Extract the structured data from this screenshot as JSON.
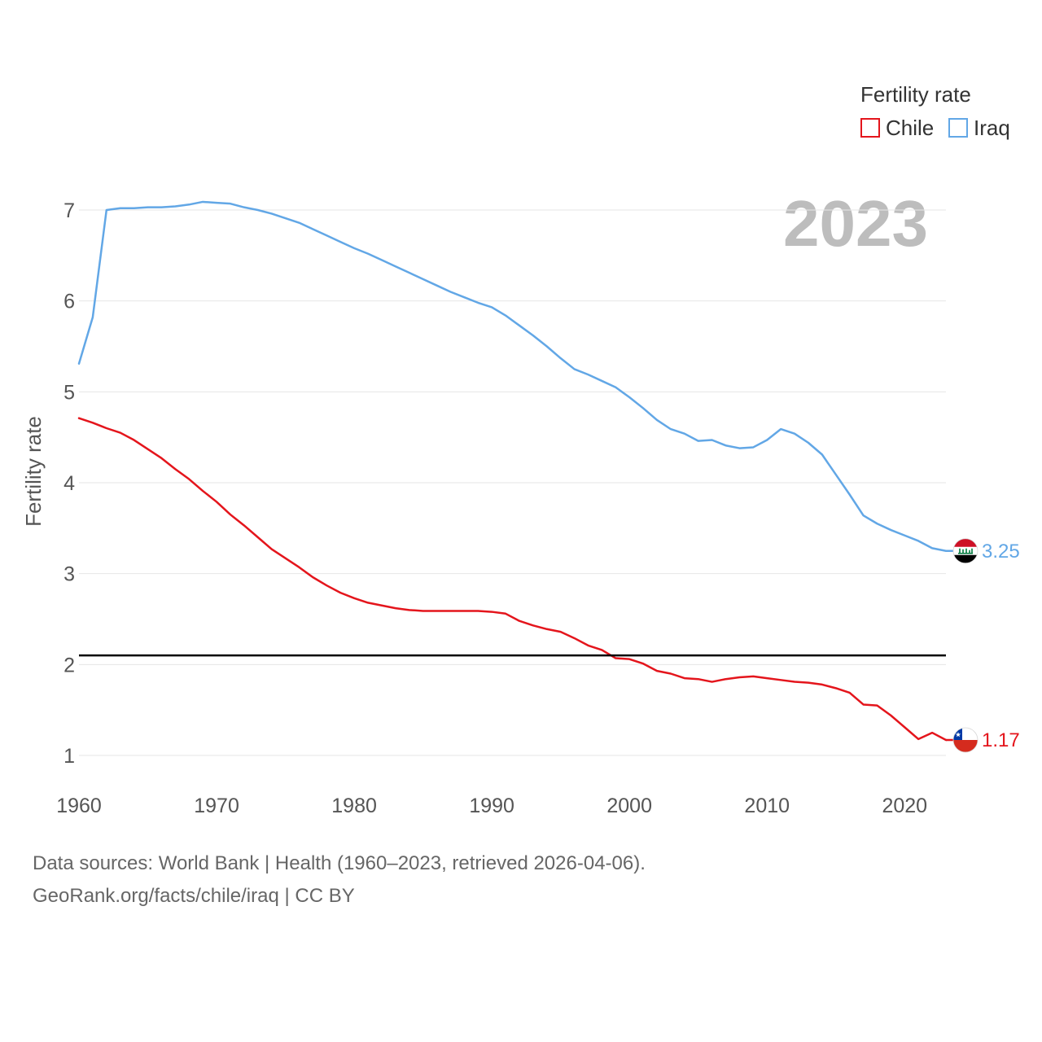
{
  "chart_data": {
    "type": "line",
    "ylabel": "Fertility rate",
    "xlim": [
      1960,
      2023
    ],
    "ylim": [
      1,
      7
    ],
    "xticks": [
      1960,
      1970,
      1980,
      1990,
      2000,
      2010,
      2020
    ],
    "yticks": [
      1,
      2,
      3,
      4,
      5,
      6,
      7
    ],
    "grid": true,
    "legend": {
      "title": "Fertility rate",
      "position": "top-right"
    },
    "current_year_label": "2023",
    "reference_line": {
      "value": 2.1,
      "color": "#000000"
    },
    "x": [
      1960,
      1961,
      1962,
      1963,
      1964,
      1965,
      1966,
      1967,
      1968,
      1969,
      1970,
      1971,
      1972,
      1973,
      1974,
      1975,
      1976,
      1977,
      1978,
      1979,
      1980,
      1981,
      1982,
      1983,
      1984,
      1985,
      1986,
      1987,
      1988,
      1989,
      1990,
      1991,
      1992,
      1993,
      1994,
      1995,
      1996,
      1997,
      1998,
      1999,
      2000,
      2001,
      2002,
      2003,
      2004,
      2005,
      2006,
      2007,
      2008,
      2009,
      2010,
      2011,
      2012,
      2013,
      2014,
      2015,
      2016,
      2017,
      2018,
      2019,
      2020,
      2021,
      2022,
      2023
    ],
    "series": [
      {
        "name": "Chile",
        "color": "#e4151c",
        "end_label": "1.17",
        "end_icon": "chile-flag-icon",
        "values": [
          4.71,
          4.66,
          4.6,
          4.55,
          4.47,
          4.37,
          4.27,
          4.15,
          4.04,
          3.91,
          3.79,
          3.65,
          3.53,
          3.4,
          3.27,
          3.17,
          3.07,
          2.96,
          2.87,
          2.79,
          2.73,
          2.68,
          2.65,
          2.62,
          2.6,
          2.59,
          2.59,
          2.59,
          2.59,
          2.59,
          2.58,
          2.56,
          2.48,
          2.43,
          2.39,
          2.36,
          2.29,
          2.21,
          2.16,
          2.07,
          2.06,
          2.01,
          1.93,
          1.9,
          1.85,
          1.84,
          1.81,
          1.84,
          1.86,
          1.87,
          1.85,
          1.83,
          1.81,
          1.8,
          1.78,
          1.74,
          1.69,
          1.56,
          1.55,
          1.44,
          1.31,
          1.18,
          1.25,
          1.17
        ]
      },
      {
        "name": "Iraq",
        "color": "#62a7e6",
        "end_label": "3.25",
        "end_icon": "iraq-flag-icon",
        "values": [
          5.31,
          5.82,
          7.0,
          7.02,
          7.02,
          7.03,
          7.03,
          7.04,
          7.06,
          7.09,
          7.08,
          7.07,
          7.03,
          7.0,
          6.96,
          6.91,
          6.86,
          6.79,
          6.72,
          6.65,
          6.58,
          6.52,
          6.45,
          6.38,
          6.31,
          6.24,
          6.17,
          6.1,
          6.04,
          5.98,
          5.93,
          5.84,
          5.73,
          5.62,
          5.5,
          5.37,
          5.25,
          5.19,
          5.12,
          5.05,
          4.94,
          4.82,
          4.69,
          4.59,
          4.54,
          4.46,
          4.47,
          4.41,
          4.38,
          4.39,
          4.47,
          4.59,
          4.54,
          4.44,
          4.31,
          4.09,
          3.87,
          3.64,
          3.55,
          3.48,
          3.42,
          3.36,
          3.28,
          3.25
        ]
      }
    ]
  },
  "footer": {
    "source": "Data sources: World Bank | Health (1960–2023, retrieved 2026-04-06).",
    "credit": "GeoRank.org/facts/chile/iraq | CC BY"
  }
}
